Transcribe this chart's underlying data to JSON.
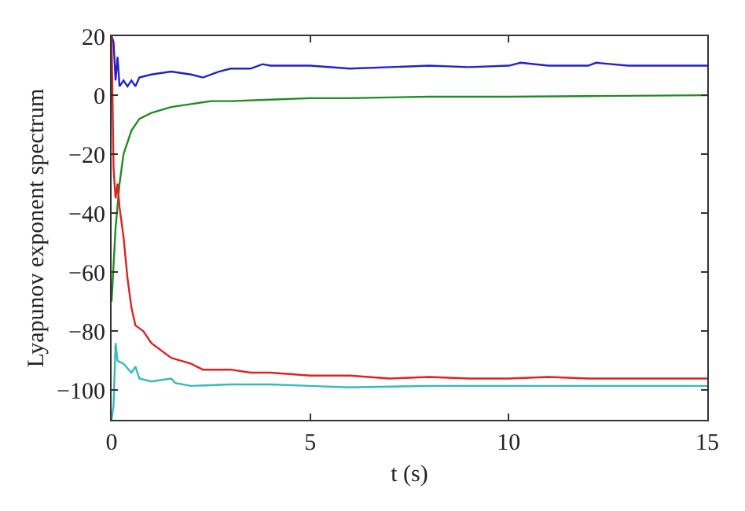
{
  "chart_data": {
    "type": "line",
    "xlabel": "t (s)",
    "ylabel": "Lyapunov exponent spectrum",
    "xlim": [
      0,
      15
    ],
    "xticks": [
      0,
      5,
      10,
      15
    ],
    "ylim": [
      -110,
      20
    ],
    "yticks": [
      {
        "value": -100,
        "label": "−100"
      },
      {
        "value": -80,
        "label": "−80"
      },
      {
        "value": -60,
        "label": "−60"
      },
      {
        "value": -40,
        "label": "−40"
      },
      {
        "value": -20,
        "label": "−20"
      },
      0,
      20
    ],
    "line_style": "solid",
    "marker": "none",
    "series": [
      {
        "color": "#2222cc",
        "x": [
          0,
          0.05,
          0.1,
          0.15,
          0.2,
          0.3,
          0.4,
          0.5,
          0.6,
          0.7,
          1,
          1.5,
          2,
          2.3,
          2.7,
          3,
          3.5,
          3.8,
          4,
          5,
          6,
          7,
          8,
          9,
          10,
          10.3,
          11,
          12,
          12.2,
          13,
          14,
          15
        ],
        "values": [
          20,
          18,
          5,
          13,
          3,
          5,
          3,
          5,
          3,
          6,
          7,
          8,
          7,
          6,
          8,
          9,
          9,
          10.5,
          10,
          10,
          9,
          9.5,
          10,
          9.5,
          10,
          11,
          10,
          10,
          11,
          10,
          10,
          10
        ]
      },
      {
        "color": "#228b22",
        "x": [
          0,
          0.1,
          0.2,
          0.3,
          0.5,
          0.7,
          1,
          1.5,
          2,
          2.5,
          3,
          4,
          5,
          6,
          8,
          10,
          12,
          15
        ],
        "values": [
          -70,
          -45,
          -30,
          -20,
          -12,
          -8,
          -6,
          -4,
          -3,
          -2,
          -2,
          -1.5,
          -1,
          -1,
          -0.5,
          -0.5,
          -0.3,
          0
        ]
      },
      {
        "color": "#dd2222",
        "x": [
          0,
          0.05,
          0.1,
          0.15,
          0.2,
          0.3,
          0.4,
          0.5,
          0.6,
          0.8,
          1,
          1.5,
          2,
          2.3,
          3,
          3.5,
          4,
          5,
          6,
          7,
          8,
          9,
          10,
          11,
          12,
          15
        ],
        "values": [
          20,
          -25,
          -35,
          -30,
          -38,
          -48,
          -62,
          -72,
          -78,
          -80,
          -84,
          -89,
          -91,
          -93,
          -93,
          -94,
          -94,
          -95,
          -95,
          -96,
          -95.5,
          -96,
          -96,
          -95.5,
          -96,
          -96
        ]
      },
      {
        "color": "#33bbbb",
        "x": [
          0,
          0.05,
          0.1,
          0.15,
          0.3,
          0.5,
          0.6,
          0.7,
          1,
          1.5,
          1.6,
          2,
          3,
          4,
          5,
          6,
          8,
          10,
          15
        ],
        "values": [
          -110,
          -105,
          -84,
          -90,
          -91,
          -94,
          -92,
          -96,
          -97,
          -96,
          -97.5,
          -98.5,
          -98,
          -98,
          -98.5,
          -99,
          -98.5,
          -98.5,
          -98.5
        ]
      }
    ]
  }
}
